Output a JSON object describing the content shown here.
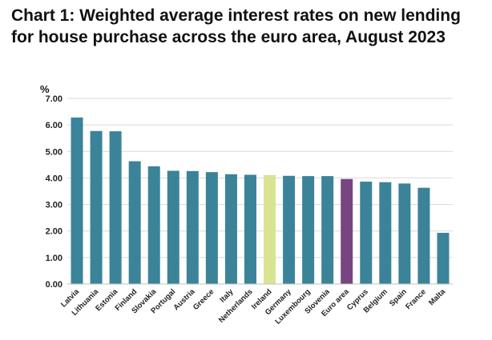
{
  "chart_data": {
    "type": "bar",
    "title": "Chart 1: Weighted average interest rates on new lending for house purchase across the euro area, August 2023",
    "ylabel": "%",
    "xlabel": "",
    "ylim": [
      0,
      7
    ],
    "yticks": [
      "0.00",
      "1.00",
      "2.00",
      "3.00",
      "4.00",
      "5.00",
      "6.00",
      "7.00"
    ],
    "grid": true,
    "categories": [
      "Latvia",
      "Lithuania",
      "Estonia",
      "Finland",
      "Slovakia",
      "Portugal",
      "Austria",
      "Greece",
      "Italy",
      "Netherlands",
      "Ireland",
      "Germany",
      "Luxembourg",
      "Slovenia",
      "Euro area",
      "Cyprus",
      "Belgium",
      "Spain",
      "France",
      "Malta"
    ],
    "values": [
      6.28,
      5.77,
      5.76,
      4.63,
      4.44,
      4.27,
      4.26,
      4.22,
      4.14,
      4.12,
      4.11,
      4.08,
      4.07,
      4.07,
      3.96,
      3.86,
      3.84,
      3.79,
      3.63,
      1.93
    ],
    "colors": {
      "default": "#3b8398",
      "Ireland": "#d9e493",
      "Euro area": "#77457f",
      "grid": "#d9d9d9",
      "axis": "#bfbfbf"
    }
  }
}
